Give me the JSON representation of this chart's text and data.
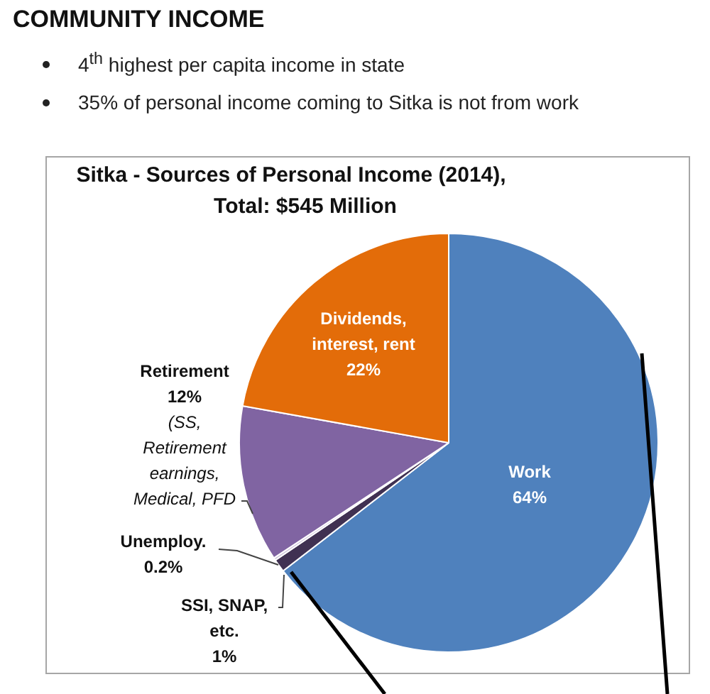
{
  "chart_data": {
    "type": "pie",
    "title": "Sitka - Sources of Personal Income (2014),",
    "subtitle": "Total: $545 Million",
    "categories": [
      "Work",
      "SSI, SNAP, etc.",
      "Unemploy.",
      "Retirement",
      "Dividends, interest, rent"
    ],
    "values": [
      64,
      1,
      0.2,
      12,
      22
    ],
    "value_labels": [
      "64%",
      "1%",
      "0.2%",
      "12%",
      "22%"
    ],
    "colors": [
      "#4f81bd",
      "#403152",
      "#ccc1da",
      "#8064a2",
      "#e36c09"
    ],
    "legend": false,
    "annotations": [
      "COMMUNITY INCOME",
      "4$^{th}$ highest per capita income in state",
      "35% of personal income coming to Sitka is not from work",
      "(SS, Retirement earnings, Medical, PFD"
    ]
  }
}
